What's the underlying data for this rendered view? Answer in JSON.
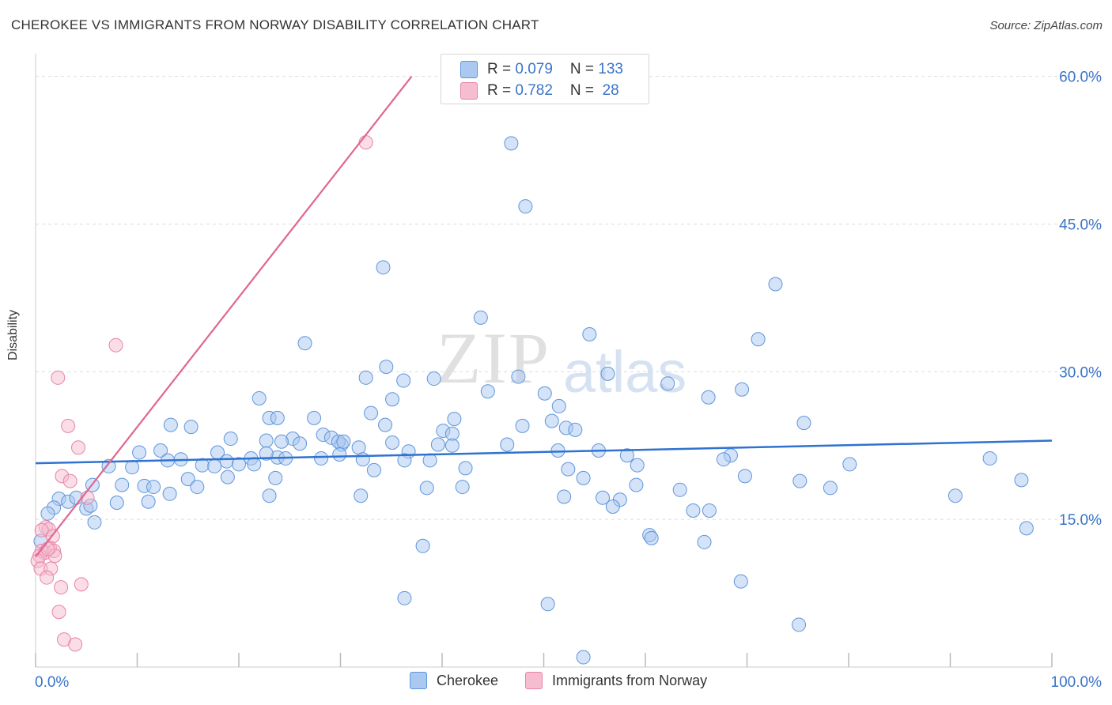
{
  "header": {
    "title": "CHEROKEE VS IMMIGRANTS FROM NORWAY DISABILITY CORRELATION CHART",
    "source": "Source: ZipAtlas.com"
  },
  "watermark": {
    "zip": "ZIP",
    "atlas": "atlas"
  },
  "colors": {
    "blue_fill": "#aac8f0",
    "blue_stroke": "#5f96dc",
    "blue_line": "#2f72cf",
    "pink_fill": "#f6bcd0",
    "pink_stroke": "#e685a8",
    "pink_line": "#e06690",
    "axis_text": "#3a74c8",
    "grid": "#dcdcdc"
  },
  "stats": {
    "cherokee": {
      "r_label": "R = ",
      "r_value": "0.079",
      "n_label": "N = ",
      "n_value": "133"
    },
    "norway": {
      "r_label": "R = ",
      "r_value": "0.782",
      "n_label": "N = ",
      "n_value": " 28"
    }
  },
  "chart_data": {
    "type": "scatter",
    "title": "CHEROKEE VS IMMIGRANTS FROM NORWAY DISABILITY CORRELATION CHART",
    "xlabel": "",
    "ylabel": "Disability",
    "xlim": [
      0,
      100
    ],
    "ylim": [
      0,
      61.5
    ],
    "x_tick_labels": [
      "0.0%",
      "100.0%"
    ],
    "y_ticks": [
      15,
      30,
      45,
      60
    ],
    "y_tick_labels": [
      "15.0%",
      "30.0%",
      "45.0%",
      "60.0%"
    ],
    "x_tick_marks": [
      0,
      10,
      20,
      30,
      40,
      50,
      60,
      70,
      80,
      90,
      100
    ],
    "legend": [
      "Cherokee",
      "Immigrants from Norway"
    ],
    "series": [
      {
        "name": "Cherokee",
        "trend": {
          "x": [
            0,
            100
          ],
          "y": [
            20.7,
            23.0
          ]
        },
        "points": [
          [
            46.8,
            53.2
          ],
          [
            48.2,
            46.8
          ],
          [
            34.2,
            40.6
          ],
          [
            72.8,
            38.9
          ],
          [
            43.8,
            35.5
          ],
          [
            54.5,
            33.8
          ],
          [
            71.1,
            33.3
          ],
          [
            26.5,
            32.9
          ],
          [
            34.5,
            30.5
          ],
          [
            22.0,
            27.3
          ],
          [
            32.5,
            29.4
          ],
          [
            36.2,
            29.1
          ],
          [
            39.2,
            29.3
          ],
          [
            47.5,
            29.5
          ],
          [
            56.3,
            29.8
          ],
          [
            62.2,
            28.8
          ],
          [
            69.5,
            28.2
          ],
          [
            44.5,
            28.0
          ],
          [
            50.1,
            27.8
          ],
          [
            66.2,
            27.4
          ],
          [
            35.1,
            27.2
          ],
          [
            51.5,
            26.5
          ],
          [
            33.0,
            25.8
          ],
          [
            23.0,
            25.3
          ],
          [
            23.8,
            25.3
          ],
          [
            27.4,
            25.3
          ],
          [
            41.2,
            25.2
          ],
          [
            50.8,
            25.0
          ],
          [
            75.6,
            24.8
          ],
          [
            13.3,
            24.6
          ],
          [
            15.3,
            24.4
          ],
          [
            47.9,
            24.5
          ],
          [
            52.2,
            24.3
          ],
          [
            34.4,
            24.6
          ],
          [
            53.1,
            24.1
          ],
          [
            40.1,
            24.0
          ],
          [
            41.0,
            23.7
          ],
          [
            28.3,
            23.6
          ],
          [
            25.3,
            23.2
          ],
          [
            22.7,
            23.0
          ],
          [
            19.2,
            23.2
          ],
          [
            30.1,
            22.6
          ],
          [
            31.8,
            22.3
          ],
          [
            29.1,
            23.3
          ],
          [
            29.8,
            22.9
          ],
          [
            26.0,
            22.7
          ],
          [
            30.3,
            22.9
          ],
          [
            39.6,
            22.6
          ],
          [
            35.1,
            22.8
          ],
          [
            24.2,
            22.9
          ],
          [
            46.4,
            22.6
          ],
          [
            41.0,
            22.5
          ],
          [
            12.3,
            22.0
          ],
          [
            10.2,
            21.8
          ],
          [
            17.9,
            21.8
          ],
          [
            23.8,
            21.3
          ],
          [
            22.7,
            21.7
          ],
          [
            21.2,
            21.2
          ],
          [
            28.1,
            21.2
          ],
          [
            51.4,
            22.0
          ],
          [
            55.4,
            22.0
          ],
          [
            36.7,
            21.9
          ],
          [
            29.9,
            21.6
          ],
          [
            24.6,
            21.2
          ],
          [
            32.2,
            21.1
          ],
          [
            36.3,
            21.0
          ],
          [
            38.8,
            21.0
          ],
          [
            13.0,
            21.0
          ],
          [
            14.3,
            21.1
          ],
          [
            18.8,
            20.9
          ],
          [
            21.5,
            20.6
          ],
          [
            68.4,
            21.5
          ],
          [
            67.7,
            21.1
          ],
          [
            58.2,
            21.5
          ],
          [
            59.2,
            20.5
          ],
          [
            80.1,
            20.6
          ],
          [
            93.9,
            21.2
          ],
          [
            7.2,
            20.4
          ],
          [
            9.5,
            20.3
          ],
          [
            16.4,
            20.5
          ],
          [
            17.6,
            20.4
          ],
          [
            20.0,
            20.6
          ],
          [
            33.3,
            20.0
          ],
          [
            42.3,
            20.2
          ],
          [
            52.4,
            20.1
          ],
          [
            15.0,
            19.1
          ],
          [
            18.9,
            19.3
          ],
          [
            23.6,
            19.2
          ],
          [
            53.9,
            19.2
          ],
          [
            69.8,
            19.4
          ],
          [
            75.2,
            18.9
          ],
          [
            97.0,
            19.0
          ],
          [
            5.6,
            18.5
          ],
          [
            8.5,
            18.5
          ],
          [
            10.7,
            18.4
          ],
          [
            11.6,
            18.3
          ],
          [
            15.9,
            18.3
          ],
          [
            38.5,
            18.2
          ],
          [
            42.0,
            18.3
          ],
          [
            59.1,
            18.5
          ],
          [
            63.4,
            18.0
          ],
          [
            78.2,
            18.2
          ],
          [
            13.2,
            17.6
          ],
          [
            23.0,
            17.4
          ],
          [
            32.0,
            17.4
          ],
          [
            52.0,
            17.3
          ],
          [
            55.8,
            17.2
          ],
          [
            90.5,
            17.4
          ],
          [
            2.3,
            17.1
          ],
          [
            3.2,
            16.8
          ],
          [
            4.0,
            17.2
          ],
          [
            8.0,
            16.7
          ],
          [
            11.1,
            16.8
          ],
          [
            57.5,
            17.0
          ],
          [
            1.8,
            16.2
          ],
          [
            5.0,
            16.1
          ],
          [
            5.4,
            16.4
          ],
          [
            56.8,
            16.3
          ],
          [
            64.7,
            15.9
          ],
          [
            66.3,
            15.9
          ],
          [
            1.2,
            15.6
          ],
          [
            5.8,
            14.7
          ],
          [
            97.5,
            14.1
          ],
          [
            60.4,
            13.4
          ],
          [
            60.6,
            13.1
          ],
          [
            65.8,
            12.7
          ],
          [
            38.1,
            12.3
          ],
          [
            69.4,
            8.7
          ],
          [
            36.3,
            7.0
          ],
          [
            50.4,
            6.4
          ],
          [
            75.1,
            4.3
          ],
          [
            53.9,
            1.0
          ],
          [
            0.5,
            12.8
          ]
        ]
      },
      {
        "name": "Immigrants from Norway",
        "trend": {
          "x": [
            0,
            37
          ],
          "y": [
            11.2,
            60.0
          ]
        },
        "points": [
          [
            32.5,
            53.3
          ],
          [
            7.9,
            32.7
          ],
          [
            2.2,
            29.4
          ],
          [
            3.2,
            24.5
          ],
          [
            4.2,
            22.3
          ],
          [
            2.6,
            19.4
          ],
          [
            3.4,
            18.9
          ],
          [
            5.1,
            17.2
          ],
          [
            1.0,
            14.2
          ],
          [
            1.3,
            14.0
          ],
          [
            0.6,
            13.9
          ],
          [
            1.7,
            13.3
          ],
          [
            1.4,
            12.1
          ],
          [
            0.6,
            11.8
          ],
          [
            0.9,
            11.6
          ],
          [
            1.8,
            11.8
          ],
          [
            0.4,
            11.3
          ],
          [
            1.9,
            11.3
          ],
          [
            0.2,
            10.8
          ],
          [
            0.5,
            10.0
          ],
          [
            1.5,
            10.0
          ],
          [
            1.1,
            9.1
          ],
          [
            2.5,
            8.1
          ],
          [
            4.5,
            8.4
          ],
          [
            2.3,
            5.6
          ],
          [
            2.8,
            2.8
          ],
          [
            3.9,
            2.3
          ],
          [
            1.2,
            12.0
          ]
        ]
      }
    ]
  }
}
